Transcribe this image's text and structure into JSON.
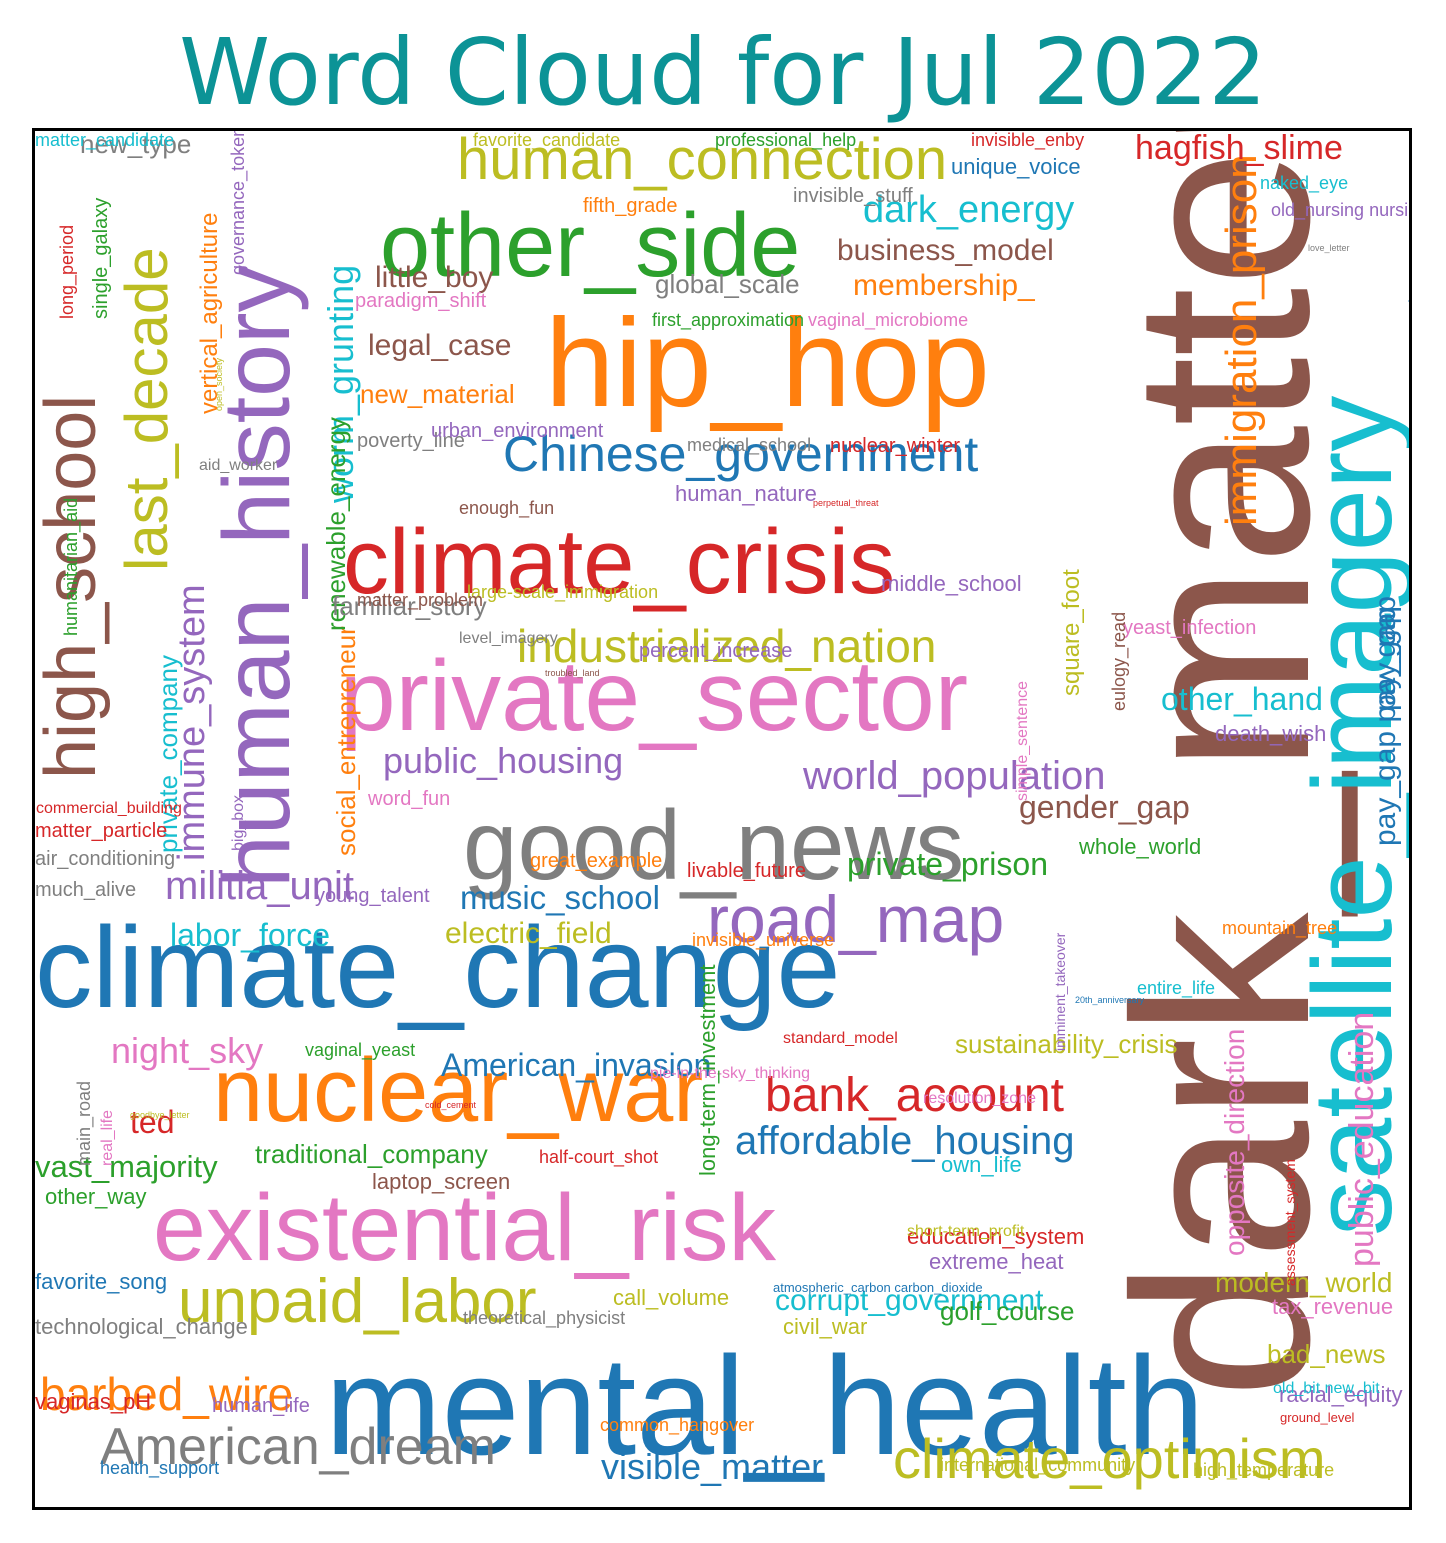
{
  "title": "Word Cloud for Jul 2022",
  "colors": {
    "title": "#0c9396",
    "blue": "#1f77b4",
    "orange": "#ff7f0e",
    "green": "#2ca02c",
    "red": "#d62728",
    "purple": "#9467bd",
    "brown": "#8c564b",
    "pink": "#e377c2",
    "gray": "#7f7f7f",
    "olive": "#bcbd22",
    "cyan": "#17becf"
  },
  "words": [
    {
      "text": "dark_matter",
      "color": "brown",
      "rot": true
    },
    {
      "text": "mental_health",
      "color": "blue"
    },
    {
      "text": "climate_change",
      "color": "blue"
    },
    {
      "text": "satellite_imagery",
      "color": "cyan",
      "rot": true
    },
    {
      "text": "hip_hop",
      "color": "orange"
    },
    {
      "text": "private_sector",
      "color": "pink"
    },
    {
      "text": "climate_crisis",
      "color": "red"
    },
    {
      "text": "good_news",
      "color": "gray"
    },
    {
      "text": "existential_risk",
      "color": "pink"
    },
    {
      "text": "nuclear_war",
      "color": "orange"
    },
    {
      "text": "human_history",
      "color": "purple",
      "rot": true
    },
    {
      "text": "other_side",
      "color": "green"
    },
    {
      "text": "high_school",
      "color": "brown",
      "rot": true
    },
    {
      "text": "last_decade",
      "color": "olive",
      "rot": true
    },
    {
      "text": "human_connection",
      "color": "olive"
    },
    {
      "text": "Chinese_government",
      "color": "blue"
    },
    {
      "text": "industrialized_nation",
      "color": "olive"
    },
    {
      "text": "immigration_prison",
      "color": "orange",
      "rot": true
    },
    {
      "text": "public_education",
      "color": "pink",
      "rot": true
    },
    {
      "text": "unpaid_labor",
      "color": "olive"
    },
    {
      "text": "climate_optimism",
      "color": "olive"
    },
    {
      "text": "American_dream",
      "color": "gray"
    },
    {
      "text": "barbed_wire",
      "color": "orange"
    },
    {
      "text": "road_map",
      "color": "purple"
    },
    {
      "text": "world_population",
      "color": "purple"
    },
    {
      "text": "worm_grunting",
      "color": "cyan",
      "rot": true
    },
    {
      "text": "immune_system",
      "color": "purple",
      "rot": true
    },
    {
      "text": "bank_account",
      "color": "red"
    },
    {
      "text": "affordable_housing",
      "color": "blue"
    },
    {
      "text": "militia_unit",
      "color": "purple"
    },
    {
      "text": "public_housing",
      "color": "purple"
    },
    {
      "text": "hagfish_slime",
      "color": "red"
    },
    {
      "text": "dark_energy",
      "color": "cyan"
    },
    {
      "text": "business_model",
      "color": "brown"
    },
    {
      "text": "membership_",
      "color": "orange"
    },
    {
      "text": "little_boy",
      "color": "brown"
    },
    {
      "text": "legal_case",
      "color": "brown"
    },
    {
      "text": "global_scale",
      "color": "gray"
    },
    {
      "text": "pay_gap pay_gap",
      "color": "blue",
      "rot": true
    },
    {
      "text": "pay_gap",
      "color": "blue",
      "rot": true
    },
    {
      "text": "night_sky",
      "color": "pink"
    },
    {
      "text": "labor_force",
      "color": "cyan"
    },
    {
      "text": "electric_field",
      "color": "olive"
    },
    {
      "text": "music_school",
      "color": "blue"
    },
    {
      "text": "private_prison",
      "color": "green"
    },
    {
      "text": "gender_gap",
      "color": "brown"
    },
    {
      "text": "other_hand",
      "color": "cyan"
    },
    {
      "text": "visible_matter",
      "color": "blue"
    },
    {
      "text": "corrupt_government",
      "color": "cyan"
    },
    {
      "text": "American_invasion",
      "color": "blue"
    },
    {
      "text": "vast_majority",
      "color": "green"
    },
    {
      "text": "ted",
      "color": "red"
    },
    {
      "text": "golf_course",
      "color": "green"
    },
    {
      "text": "modern_world",
      "color": "olive"
    },
    {
      "text": "opposite_direction",
      "color": "pink",
      "rot": true
    },
    {
      "text": "social_entrepreneur",
      "color": "orange",
      "rot": true
    },
    {
      "text": "private_company",
      "color": "cyan",
      "rot": true
    },
    {
      "text": "renewable_energy",
      "color": "green",
      "rot": true
    },
    {
      "text": "vertical_agriculture",
      "color": "orange",
      "rot": true
    },
    {
      "text": "square_foot",
      "color": "olive",
      "rot": true
    },
    {
      "text": "sustainability_crisis",
      "color": "olive"
    },
    {
      "text": "traditional_company",
      "color": "green"
    },
    {
      "text": "new_material",
      "color": "orange"
    },
    {
      "text": "familiar_story",
      "color": "gray"
    },
    {
      "text": "bad_news",
      "color": "olive"
    },
    {
      "text": "new_type",
      "color": "gray"
    },
    {
      "text": "human_nature",
      "color": "purple"
    },
    {
      "text": "middle_school",
      "color": "purple"
    },
    {
      "text": "death_wish",
      "color": "purple"
    },
    {
      "text": "whole_world",
      "color": "green"
    },
    {
      "text": "own_life",
      "color": "cyan"
    },
    {
      "text": "education_system",
      "color": "red"
    },
    {
      "text": "extreme_heat",
      "color": "purple"
    },
    {
      "text": "laptop_screen",
      "color": "brown"
    },
    {
      "text": "other_way",
      "color": "green"
    },
    {
      "text": "favorite_song",
      "color": "blue"
    },
    {
      "text": "technological_change",
      "color": "gray"
    },
    {
      "text": "vaginas_pH",
      "color": "red"
    },
    {
      "text": "human_life",
      "color": "purple"
    },
    {
      "text": "call_volume",
      "color": "olive"
    },
    {
      "text": "civil_war",
      "color": "olive"
    },
    {
      "text": "tax_revenue",
      "color": "pink"
    },
    {
      "text": "racial_equity",
      "color": "purple"
    },
    {
      "text": "unique_voice",
      "color": "blue"
    },
    {
      "text": "paradigm_shift",
      "color": "pink"
    },
    {
      "text": "poverty_line",
      "color": "gray"
    },
    {
      "text": "percent_increase",
      "color": "purple"
    },
    {
      "text": "great_example",
      "color": "orange"
    },
    {
      "text": "livable_future",
      "color": "red"
    },
    {
      "text": "young_talent",
      "color": "purple"
    },
    {
      "text": "word_fun",
      "color": "pink"
    },
    {
      "text": "air_conditioning",
      "color": "gray"
    },
    {
      "text": "much_alive",
      "color": "gray"
    },
    {
      "text": "matter_particle",
      "color": "red"
    },
    {
      "text": "yeast_infection",
      "color": "pink"
    },
    {
      "text": "entire_life",
      "color": "cyan"
    },
    {
      "text": "mountain_tree",
      "color": "orange"
    },
    {
      "text": "invisible_universe",
      "color": "orange"
    },
    {
      "text": "vaginal_yeast",
      "color": "green"
    },
    {
      "text": "standard_model",
      "color": "red"
    },
    {
      "text": "pie-in-the-sky_thinking",
      "color": "pink"
    },
    {
      "text": "resolution_zone",
      "color": "pink"
    },
    {
      "text": "short-term_profit",
      "color": "olive"
    },
    {
      "text": "theoretical_physicist",
      "color": "gray"
    },
    {
      "text": "common_hangover",
      "color": "orange"
    },
    {
      "text": "international_community",
      "color": "olive"
    },
    {
      "text": "high_temperature",
      "color": "olive"
    },
    {
      "text": "old_bit new_bit",
      "color": "cyan"
    },
    {
      "text": "ground_level",
      "color": "red"
    },
    {
      "text": "health_support",
      "color": "blue"
    },
    {
      "text": "half-court_shot",
      "color": "red"
    },
    {
      "text": "atmospheric_carbon carbon_dioxide",
      "color": "blue"
    },
    {
      "text": "fifth_grade",
      "color": "orange"
    },
    {
      "text": "invisible_stuff",
      "color": "gray"
    },
    {
      "text": "first_approximation",
      "color": "green"
    },
    {
      "text": "vaginal_microbiome",
      "color": "pink"
    },
    {
      "text": "urban_environment",
      "color": "purple"
    },
    {
      "text": "medical_school",
      "color": "gray"
    },
    {
      "text": "nuclear_winter",
      "color": "red"
    },
    {
      "text": "enough_fun",
      "color": "brown"
    },
    {
      "text": "large-scale_immigration",
      "color": "olive"
    },
    {
      "text": "matter_problem",
      "color": "brown"
    },
    {
      "text": "aid_worker",
      "color": "gray"
    },
    {
      "text": "level_imagery",
      "color": "gray"
    },
    {
      "text": "commercial_building",
      "color": "red"
    },
    {
      "text": "matter_candidate",
      "color": "cyan"
    },
    {
      "text": "favorite_candidate",
      "color": "olive"
    },
    {
      "text": "professional_help",
      "color": "green"
    },
    {
      "text": "invisible_enby",
      "color": "red"
    },
    {
      "text": "naked_eye",
      "color": "cyan"
    },
    {
      "text": "old_nursing nursing_home",
      "color": "purple"
    },
    {
      "text": "simple_sentence",
      "color": "pink",
      "rot": true
    },
    {
      "text": "long_period",
      "color": "red",
      "rot": true
    },
    {
      "text": "single_galaxy",
      "color": "green",
      "rot": true
    },
    {
      "text": "governance_token",
      "color": "purple",
      "rot": true
    },
    {
      "text": "post-traumatic_stress",
      "color": "blue",
      "rot": true
    },
    {
      "text": "eulogy_read",
      "color": "brown",
      "rot": true
    },
    {
      "text": "humanitarian_aid",
      "color": "green",
      "rot": true
    },
    {
      "text": "big_box",
      "color": "purple",
      "rot": true
    },
    {
      "text": "main_road",
      "color": "gray",
      "rot": true
    },
    {
      "text": "real_life",
      "color": "pink",
      "rot": true
    },
    {
      "text": "long-term_investment",
      "color": "green",
      "rot": true
    },
    {
      "text": "assessment_system",
      "color": "red",
      "rot": true
    },
    {
      "text": "love_letter",
      "color": "gray"
    },
    {
      "text": "open_society",
      "color": "olive",
      "rot": true
    },
    {
      "text": "perpetual_threat",
      "color": "red"
    },
    {
      "text": "troubled_land",
      "color": "brown"
    },
    {
      "text": "goodbye_letter",
      "color": "olive"
    },
    {
      "text": "cold_cement",
      "color": "red"
    },
    {
      "text": "20th_anniversary",
      "color": "blue"
    },
    {
      "text": "imminent_takeover",
      "color": "purple",
      "rot": true
    }
  ]
}
